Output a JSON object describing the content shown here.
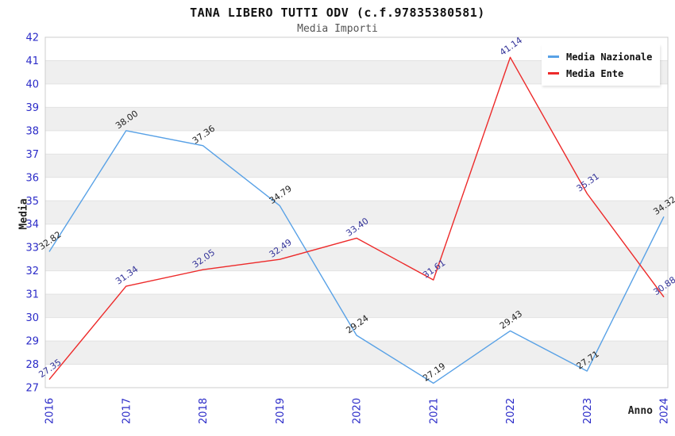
{
  "header": {
    "title": "TANA LIBERO TUTTI ODV (c.f.97835380581)",
    "subtitle": "Media Importi"
  },
  "axes": {
    "y_label": "Media",
    "x_label": "Anno"
  },
  "legend": {
    "position": "top-right",
    "entries": [
      {
        "label": "Media Nazionale",
        "color": "#58A1E6"
      },
      {
        "label": "Media Ente",
        "color": "#ED2A2A"
      }
    ]
  },
  "chart_data": {
    "type": "line",
    "title": "TANA LIBERO TUTTI ODV (c.f.97835380581)",
    "subtitle": "Media Importi",
    "xlabel": "Anno",
    "ylabel": "Media",
    "categories": [
      "2016",
      "2017",
      "2018",
      "2019",
      "2020",
      "2021",
      "2022",
      "2023",
      "2024"
    ],
    "series": [
      {
        "name": "Media Nazionale",
        "color": "#58A1E6",
        "label_color": "#222222",
        "values": [
          32.82,
          38.0,
          37.36,
          34.79,
          29.24,
          27.19,
          29.43,
          27.71,
          34.32
        ]
      },
      {
        "name": "Media Ente",
        "color": "#ED2A2A",
        "label_color": "#333399",
        "values": [
          27.35,
          31.34,
          32.05,
          32.49,
          33.4,
          31.61,
          41.14,
          35.31,
          30.88
        ]
      }
    ],
    "ylim": [
      27,
      42
    ],
    "y_tick_step": 1,
    "grid": "horizontal-bands",
    "legend_position": "top-right",
    "tick_color": "#2B2BC8",
    "band_color": "#EFEFEF",
    "gridline_color": "#E2E2E2",
    "border_color": "#CCCCCC",
    "point_label_format": "0.00"
  }
}
